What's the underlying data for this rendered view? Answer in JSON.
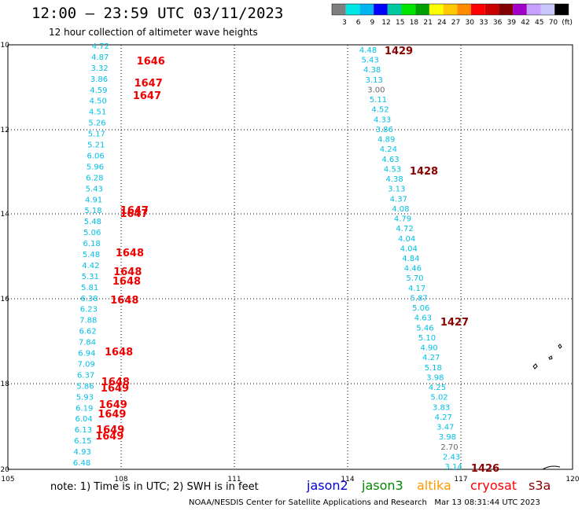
{
  "header": {
    "title": "12:00 – 23:59 UTC 03/11/2023",
    "subtitle": "12 hour collection of altimeter wave heights"
  },
  "colorbar": {
    "colors": [
      "#7f7f7f",
      "#00e6e6",
      "#00b4f0",
      "#0000ff",
      "#00c8a0",
      "#00e600",
      "#00a000",
      "#ffff00",
      "#ffc800",
      "#ff8c00",
      "#ff0000",
      "#c80000",
      "#820000",
      "#a000c8",
      "#c8a0ff",
      "#c8c8ff",
      "#000000"
    ],
    "labels": [
      "3",
      "6",
      "9",
      "12",
      "15",
      "18",
      "21",
      "24",
      "27",
      "30",
      "33",
      "36",
      "39",
      "42",
      "45",
      "70",
      "(ft)"
    ]
  },
  "axes": {
    "x_ticks": [
      "105",
      "108",
      "111",
      "114",
      "117",
      "120"
    ],
    "y_ticks": [
      "10",
      "12",
      "14",
      "16",
      "18",
      "20"
    ]
  },
  "note": "note:  1) Time is in UTC;  2) SWH is in feet",
  "satellites": [
    {
      "name": "jason2",
      "color": "#0000dd"
    },
    {
      "name": "jason3",
      "color": "#008800"
    },
    {
      "name": "altika",
      "color": "#ff9900"
    },
    {
      "name": "cryosat",
      "color": "#ff0000"
    },
    {
      "name": "s3a",
      "color": "#880000"
    }
  ],
  "credit": "NOAA/NESDIS Center for Satellite Applications and Research   Mar 13 08:31:44 UTC 2023",
  "tracks": {
    "west": {
      "color": "#00bfe6",
      "values": [
        "4.72",
        "4.87",
        "3.32",
        "3.86",
        "4.59",
        "4.50",
        "4.51",
        "5.26",
        "5.17",
        "5.21",
        "6.06",
        "5.96",
        "6.28",
        "5.43",
        "4.91",
        "5.18",
        "5.48",
        "5.06",
        "6.18",
        "5.48",
        "4.42",
        "5.31",
        "5.81",
        "6.38",
        "6.23",
        "7.88",
        "6.62",
        "7.84",
        "6.94",
        "7.09",
        "6.37",
        "5.86",
        "5.93",
        "6.19",
        "6.04",
        "6.13",
        "6.15",
        "4.93",
        "6.48"
      ]
    },
    "west_times": {
      "color": "#ee0000",
      "values": [
        "1646",
        "1647",
        "1647",
        "1647",
        "1647",
        "1648",
        "1648",
        "1648",
        "1648",
        "1648",
        "1648",
        "1649",
        "1649",
        "1649",
        "1649",
        "1649"
      ]
    },
    "east": {
      "color": "#00bfe6",
      "values": [
        "4.48",
        "5.43",
        "4.38",
        "3.13",
        "3.00",
        "5.11",
        "4.52",
        "4.33",
        "3.86",
        "4.89",
        "4.24",
        "4.63",
        "4.53",
        "4.38",
        "3.13",
        "4.37",
        "4.08",
        "4.79",
        "4.72",
        "4.04",
        "4.04",
        "4.84",
        "4.46",
        "5.70",
        "4.17",
        "5.87",
        "5.06",
        "4.63",
        "5.46",
        "5.10",
        "4.90",
        "4.27",
        "5.18",
        "3.98",
        "4.25",
        "5.02",
        "3.83",
        "4.27",
        "3.47",
        "3.98",
        "2.70",
        "2.43",
        "3.14"
      ]
    },
    "east_times": {
      "color": "#880000",
      "values": [
        "1429",
        "1428",
        "1427",
        "1426"
      ]
    }
  }
}
